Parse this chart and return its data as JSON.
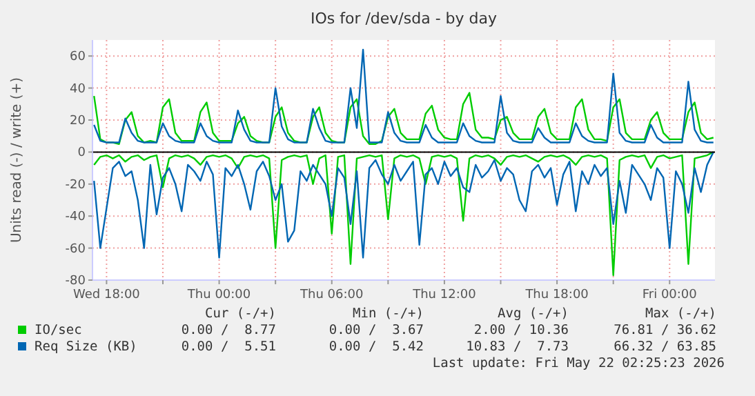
{
  "chart_data": {
    "type": "line",
    "title": "IOs for /dev/sda - by day",
    "ylabel": "Units read (-) / write (+)",
    "x": [
      "2026-05-20T17:20",
      "2026-05-20T17:40",
      "2026-05-20T18:00",
      "2026-05-20T18:20",
      "2026-05-20T18:40",
      "2026-05-20T19:00",
      "2026-05-20T19:20",
      "2026-05-20T19:40",
      "2026-05-20T20:00",
      "2026-05-20T20:20",
      "2026-05-20T20:40",
      "2026-05-20T21:00",
      "2026-05-20T21:20",
      "2026-05-20T21:40",
      "2026-05-20T22:00",
      "2026-05-20T22:20",
      "2026-05-20T22:40",
      "2026-05-20T23:00",
      "2026-05-20T23:20",
      "2026-05-20T23:40",
      "2026-05-21T00:00",
      "2026-05-21T00:20",
      "2026-05-21T00:40",
      "2026-05-21T01:00",
      "2026-05-21T01:20",
      "2026-05-21T01:40",
      "2026-05-21T02:00",
      "2026-05-21T02:20",
      "2026-05-21T02:40",
      "2026-05-21T03:00",
      "2026-05-21T03:20",
      "2026-05-21T03:40",
      "2026-05-21T04:00",
      "2026-05-21T04:20",
      "2026-05-21T04:40",
      "2026-05-21T05:00",
      "2026-05-21T05:20",
      "2026-05-21T05:40",
      "2026-05-21T06:00",
      "2026-05-21T06:20",
      "2026-05-21T06:40",
      "2026-05-21T07:00",
      "2026-05-21T07:20",
      "2026-05-21T07:40",
      "2026-05-21T08:00",
      "2026-05-21T08:20",
      "2026-05-21T08:40",
      "2026-05-21T09:00",
      "2026-05-21T09:20",
      "2026-05-21T09:40",
      "2026-05-21T10:00",
      "2026-05-21T10:20",
      "2026-05-21T10:40",
      "2026-05-21T11:00",
      "2026-05-21T11:20",
      "2026-05-21T11:40",
      "2026-05-21T12:00",
      "2026-05-21T12:20",
      "2026-05-21T12:40",
      "2026-05-21T13:00",
      "2026-05-21T13:20",
      "2026-05-21T13:40",
      "2026-05-21T14:00",
      "2026-05-21T14:20",
      "2026-05-21T14:40",
      "2026-05-21T15:00",
      "2026-05-21T15:20",
      "2026-05-21T15:40",
      "2026-05-21T16:00",
      "2026-05-21T16:20",
      "2026-05-21T16:40",
      "2026-05-21T17:00",
      "2026-05-21T17:20",
      "2026-05-21T17:40",
      "2026-05-21T18:00",
      "2026-05-21T18:20",
      "2026-05-21T18:40",
      "2026-05-21T19:00",
      "2026-05-21T19:20",
      "2026-05-21T19:40",
      "2026-05-21T20:00",
      "2026-05-21T20:20",
      "2026-05-21T20:40",
      "2026-05-21T21:00",
      "2026-05-21T21:20",
      "2026-05-21T21:40",
      "2026-05-21T22:00",
      "2026-05-21T22:20",
      "2026-05-21T22:40",
      "2026-05-21T23:00",
      "2026-05-21T23:20",
      "2026-05-21T23:40",
      "2026-05-22T00:00",
      "2026-05-22T00:20",
      "2026-05-22T00:40",
      "2026-05-22T01:00",
      "2026-05-22T01:20",
      "2026-05-22T01:40",
      "2026-05-22T02:00",
      "2026-05-22T02:20"
    ],
    "series": [
      {
        "color": "#00cc00",
        "values": [
          -8,
          -3,
          -2,
          -4,
          -2,
          -6,
          -3,
          -2,
          -5,
          -3,
          -2,
          -22,
          -4,
          -2,
          -3,
          -2,
          -4,
          -8,
          -3,
          -2,
          -3,
          -2,
          -4,
          -10,
          -3,
          -2,
          -3,
          -2,
          -4,
          -60,
          -5,
          -3,
          -2,
          -3,
          -2,
          -20,
          -4,
          -2,
          -51,
          -3,
          -2,
          -70,
          -4,
          -3,
          -2,
          -3,
          -2,
          -42,
          -4,
          -2,
          -3,
          -2,
          -4,
          -20,
          -3,
          -2,
          -3,
          -2,
          -4,
          -43,
          -4,
          -2,
          -3,
          -2,
          -4,
          -8,
          -3,
          -2,
          -3,
          -2,
          -4,
          -6,
          -3,
          -2,
          -3,
          -2,
          -4,
          -8,
          -3,
          -2,
          -3,
          -2,
          -4,
          -77,
          -5,
          -3,
          -2,
          -3,
          -2,
          -10,
          -3,
          -2,
          -4,
          -3,
          -2,
          -70,
          -4,
          -3,
          -2,
          0
        ]
      },
      {
        "color": "#0066b3",
        "values": [
          -18,
          -60,
          -35,
          -10,
          -6,
          -15,
          -12,
          -30,
          -60,
          -8,
          -39,
          -16,
          -10,
          -20,
          -37,
          -8,
          -12,
          -18,
          -6,
          -14,
          -66,
          -10,
          -15,
          -8,
          -20,
          -36,
          -12,
          -6,
          -15,
          -30,
          -20,
          -56,
          -49,
          -12,
          -18,
          -8,
          -14,
          -20,
          -40,
          -10,
          -16,
          -45,
          -12,
          -66,
          -10,
          -5,
          -14,
          -20,
          -8,
          -18,
          -12,
          -6,
          -58,
          -14,
          -10,
          -20,
          -6,
          -15,
          -10,
          -22,
          -25,
          -8,
          -16,
          -12,
          -5,
          -18,
          -10,
          -14,
          -30,
          -37,
          -12,
          -8,
          -16,
          -10,
          -33,
          -14,
          -6,
          -37,
          -12,
          -20,
          -8,
          -15,
          -10,
          -45,
          -18,
          -38,
          -8,
          -14,
          -20,
          -30,
          -10,
          -16,
          -60,
          -12,
          -20,
          -38,
          -10,
          -25,
          -8,
          0
        ]
      },
      {
        "name": "IO/sec",
        "color": "#00cc00",
        "values": [
          35,
          8,
          6,
          6,
          5,
          20,
          25,
          10,
          6,
          7,
          6,
          28,
          33,
          12,
          7,
          7,
          7,
          25,
          31,
          12,
          7,
          7,
          7,
          18,
          22,
          10,
          7,
          6,
          6,
          22,
          28,
          12,
          7,
          6,
          6,
          22,
          28,
          12,
          7,
          6,
          6,
          28,
          33,
          10,
          5,
          5,
          7,
          22,
          27,
          12,
          8,
          8,
          8,
          24,
          29,
          14,
          9,
          8,
          8,
          30,
          37,
          14,
          9,
          9,
          8,
          20,
          22,
          12,
          8,
          8,
          8,
          22,
          27,
          12,
          8,
          8,
          8,
          28,
          33,
          14,
          8,
          8,
          7,
          28,
          33,
          12,
          8,
          8,
          8,
          20,
          25,
          12,
          8,
          8,
          8,
          25,
          31,
          12,
          8,
          9
        ]
      },
      {
        "name": "Req Size (KB)",
        "color": "#0066b3",
        "values": [
          17,
          7,
          6,
          6,
          6,
          21,
          12,
          7,
          6,
          6,
          6,
          18,
          10,
          7,
          6,
          6,
          6,
          18,
          10,
          7,
          6,
          6,
          6,
          26,
          14,
          7,
          6,
          6,
          6,
          40,
          16,
          8,
          6,
          6,
          6,
          27,
          15,
          7,
          6,
          6,
          6,
          40,
          15,
          64,
          6,
          6,
          6,
          25,
          12,
          7,
          6,
          6,
          6,
          17,
          9,
          6,
          6,
          6,
          6,
          18,
          10,
          7,
          6,
          6,
          6,
          35,
          12,
          7,
          6,
          6,
          6,
          15,
          9,
          6,
          6,
          6,
          6,
          18,
          10,
          7,
          6,
          6,
          6,
          49,
          12,
          7,
          6,
          6,
          6,
          17,
          9,
          6,
          6,
          6,
          6,
          44,
          14,
          7,
          6,
          6
        ]
      }
    ],
    "xlim": [
      "2026-05-20T17:15",
      "2026-05-22T02:25"
    ],
    "xticks": [
      {
        "value": "2026-05-20T18:00",
        "label": "Wed 18:00"
      },
      {
        "value": "2026-05-20T21:00",
        "label": null
      },
      {
        "value": "2026-05-21T00:00",
        "label": "Thu 00:00"
      },
      {
        "value": "2026-05-21T03:00",
        "label": null
      },
      {
        "value": "2026-05-21T06:00",
        "label": "Thu 06:00"
      },
      {
        "value": "2026-05-21T09:00",
        "label": null
      },
      {
        "value": "2026-05-21T12:00",
        "label": "Thu 12:00"
      },
      {
        "value": "2026-05-21T15:00",
        "label": null
      },
      {
        "value": "2026-05-21T18:00",
        "label": "Thu 18:00"
      },
      {
        "value": "2026-05-21T21:00",
        "label": null
      },
      {
        "value": "2026-05-22T00:00",
        "label": "Fri 00:00"
      }
    ],
    "ylim": [
      -80,
      70
    ],
    "yticks": [
      -80,
      -60,
      -40,
      -20,
      0,
      20,
      40,
      60
    ],
    "ref_lines": [
      {
        "axis": "y",
        "value": 0,
        "color": "#000000"
      }
    ],
    "grid": true,
    "legend": "bottom",
    "annotations": [
      "Cur (-/+)",
      "Min (-/+)",
      "Avg (-/+)",
      "Max (-/+)",
      "0.00 /  8.77",
      "0.00 /  3.67",
      "2.00 / 10.36",
      "76.81 / 36.62",
      "0.00 /  5.51",
      "0.00 /  5.42",
      "10.83 /  7.73",
      "66.32 / 63.85",
      "Last update: Fri May 22 02:25:23 2026"
    ]
  }
}
